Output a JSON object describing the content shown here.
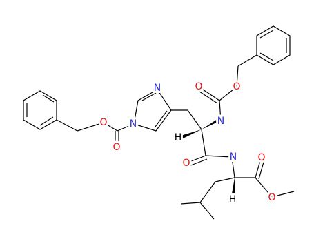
{
  "atoms": [
    {
      "label": "N"
    },
    {
      "label": "N"
    },
    {
      "label": "O"
    },
    {
      "label": "O"
    },
    {
      "label": "O"
    },
    {
      "label": "O"
    },
    {
      "label": "N"
    },
    {
      "label": "H"
    },
    {
      "label": "O"
    },
    {
      "label": "N"
    },
    {
      "label": "O"
    },
    {
      "label": "O"
    },
    {
      "label": "H"
    }
  ]
}
